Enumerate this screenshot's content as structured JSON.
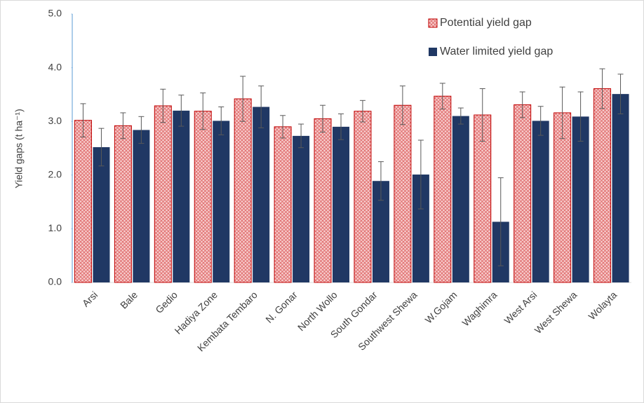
{
  "chart_data": {
    "type": "bar",
    "ylabel": "Yield gaps (t ha⁻¹)",
    "categories": [
      "Arsi",
      "Bale",
      "Gedio",
      "Hadiya Zone",
      "Kembata Tembaro",
      "N. Gonar",
      "North Wollo",
      "South Gondar",
      "Southwest Shewa",
      "W.Gojam",
      "Waghimra",
      "West Arsi",
      "West Shewa",
      "Wolayta"
    ],
    "series": [
      {
        "name": "Potential yield gap",
        "color": "#c00000",
        "pattern": "crosshatch",
        "values": [
          3.02,
          2.92,
          3.29,
          3.19,
          3.42,
          2.9,
          3.05,
          3.19,
          3.3,
          3.47,
          3.12,
          3.31,
          3.16,
          3.61
        ],
        "errors": [
          0.31,
          0.24,
          0.31,
          0.34,
          0.42,
          0.21,
          0.25,
          0.2,
          0.36,
          0.24,
          0.49,
          0.24,
          0.48,
          0.37
        ]
      },
      {
        "name": "Water limited yield gap",
        "color": "#203864",
        "values": [
          2.52,
          2.84,
          3.2,
          3.01,
          3.27,
          2.73,
          2.9,
          1.89,
          2.01,
          3.1,
          1.13,
          3.01,
          3.09,
          3.51
        ],
        "errors": [
          0.35,
          0.25,
          0.29,
          0.26,
          0.39,
          0.22,
          0.24,
          0.36,
          0.64,
          0.15,
          0.82,
          0.27,
          0.46,
          0.37
        ]
      }
    ],
    "ylim": [
      0,
      5
    ],
    "yticks": [
      {
        "value": 0,
        "label": "0.0"
      },
      {
        "value": 1,
        "label": "1.0"
      },
      {
        "value": 2,
        "label": "2.0"
      },
      {
        "value": 3,
        "label": "3.0"
      },
      {
        "value": 4,
        "label": "4.0"
      },
      {
        "value": 5,
        "label": "5.0"
      }
    ],
    "grid": false,
    "legend": "upper right"
  }
}
